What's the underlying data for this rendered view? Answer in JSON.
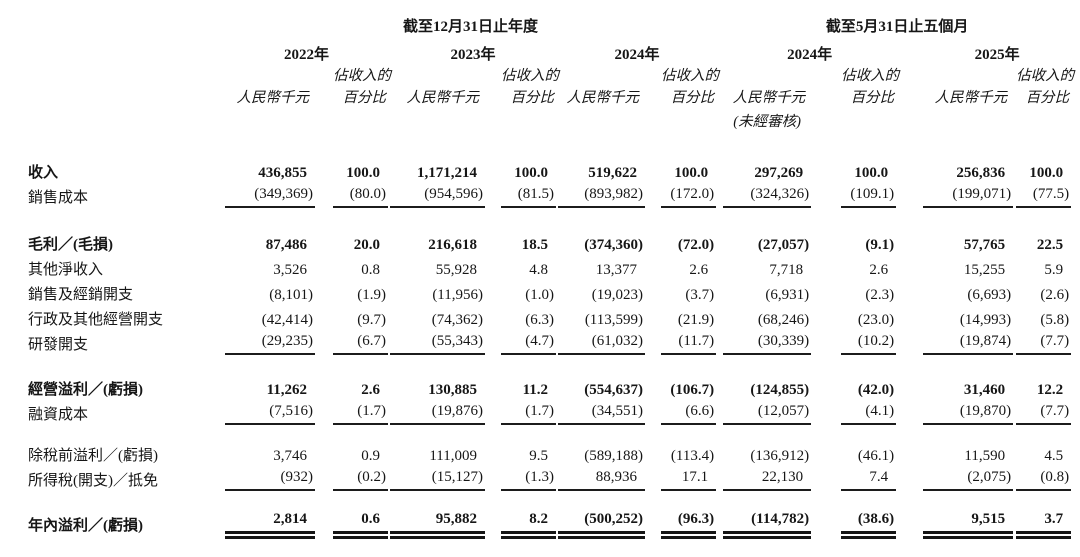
{
  "header": {
    "groups": [
      {
        "label": "截至12月31日止年度"
      },
      {
        "label": "截至5月31日止五個月"
      }
    ],
    "periods": [
      {
        "year": "2022年",
        "unit": "人民幣千元",
        "pct_line1": "佔收入的",
        "pct_line2": "百分比",
        "note": ""
      },
      {
        "year": "2023年",
        "unit": "人民幣千元",
        "pct_line1": "佔收入的",
        "pct_line2": "百分比",
        "note": ""
      },
      {
        "year": "2024年",
        "unit": "人民幣千元",
        "pct_line1": "佔收入的",
        "pct_line2": "百分比",
        "note": ""
      },
      {
        "year": "2024年",
        "unit": "人民幣千元",
        "pct_line1": "佔收入的",
        "pct_line2": "百分比",
        "note": "(未經審核)"
      },
      {
        "year": "2025年",
        "unit": "人民幣千元",
        "pct_line1": "佔收入的",
        "pct_line2": "百分比",
        "note": ""
      }
    ]
  },
  "rows": [
    {
      "label": "收入",
      "bold": true,
      "underline": "none",
      "values": [
        "436,855",
        "100.0",
        "1,171,214",
        "100.0",
        "519,622",
        "100.0",
        "297,269",
        "100.0",
        "256,836",
        "100.0"
      ]
    },
    {
      "label": "銷售成本",
      "bold": false,
      "underline": "single",
      "values": [
        "(349,369)",
        "(80.0)",
        "(954,596)",
        "(81.5)",
        "(893,982)",
        "(172.0)",
        "(324,326)",
        "(109.1)",
        "(199,071)",
        "(77.5)"
      ]
    },
    {
      "spacer": 22
    },
    {
      "label": "毛利／(毛損)",
      "bold": true,
      "underline": "none",
      "values": [
        "87,486",
        "20.0",
        "216,618",
        "18.5",
        "(374,360)",
        "(72.0)",
        "(27,057)",
        "(9.1)",
        "57,765",
        "22.5"
      ]
    },
    {
      "label": "其他淨收入",
      "bold": false,
      "underline": "none",
      "values": [
        "3,526",
        "0.8",
        "55,928",
        "4.8",
        "13,377",
        "2.6",
        "7,718",
        "2.6",
        "15,255",
        "5.9"
      ]
    },
    {
      "label": "銷售及經銷開支",
      "bold": false,
      "underline": "none",
      "values": [
        "(8,101)",
        "(1.9)",
        "(11,956)",
        "(1.0)",
        "(19,023)",
        "(3.7)",
        "(6,931)",
        "(2.3)",
        "(6,693)",
        "(2.6)"
      ]
    },
    {
      "label": "行政及其他經營開支",
      "bold": false,
      "underline": "none",
      "values": [
        "(42,414)",
        "(9.7)",
        "(74,362)",
        "(6.3)",
        "(113,599)",
        "(21.9)",
        "(68,246)",
        "(23.0)",
        "(14,993)",
        "(5.8)"
      ]
    },
    {
      "label": "研發開支",
      "bold": false,
      "underline": "single",
      "values": [
        "(29,235)",
        "(6.7)",
        "(55,343)",
        "(4.7)",
        "(61,032)",
        "(11.7)",
        "(30,339)",
        "(10.2)",
        "(19,874)",
        "(7.7)"
      ]
    },
    {
      "spacer": 20
    },
    {
      "label": "經營溢利／(虧損)",
      "bold": true,
      "underline": "none",
      "values": [
        "11,262",
        "2.6",
        "130,885",
        "11.2",
        "(554,637)",
        "(106.7)",
        "(124,855)",
        "(42.0)",
        "31,460",
        "12.2"
      ]
    },
    {
      "label": "融資成本",
      "bold": false,
      "underline": "single",
      "values": [
        "(7,516)",
        "(1.7)",
        "(19,876)",
        "(1.7)",
        "(34,551)",
        "(6.6)",
        "(12,057)",
        "(4.1)",
        "(19,870)",
        "(7.7)"
      ]
    },
    {
      "spacer": 16
    },
    {
      "label": "除稅前溢利／(虧損)",
      "bold": false,
      "underline": "none",
      "values": [
        "3,746",
        "0.9",
        "111,009",
        "9.5",
        "(589,188)",
        "(113.4)",
        "(136,912)",
        "(46.1)",
        "11,590",
        "4.5"
      ]
    },
    {
      "label": "所得稅(開支)／抵免",
      "bold": false,
      "underline": "single",
      "values": [
        "(932)",
        "(0.2)",
        "(15,127)",
        "(1.3)",
        "88,936",
        "17.1",
        "22,130",
        "7.4",
        "(2,075)",
        "(0.8)"
      ]
    },
    {
      "spacer": 20
    },
    {
      "label": "年內溢利／(虧損)",
      "bold": true,
      "underline": "double",
      "values": [
        "2,814",
        "0.6",
        "95,882",
        "8.2",
        "(500,252)",
        "(96.3)",
        "(114,782)",
        "(38.6)",
        "9,515",
        "3.7"
      ]
    }
  ]
}
